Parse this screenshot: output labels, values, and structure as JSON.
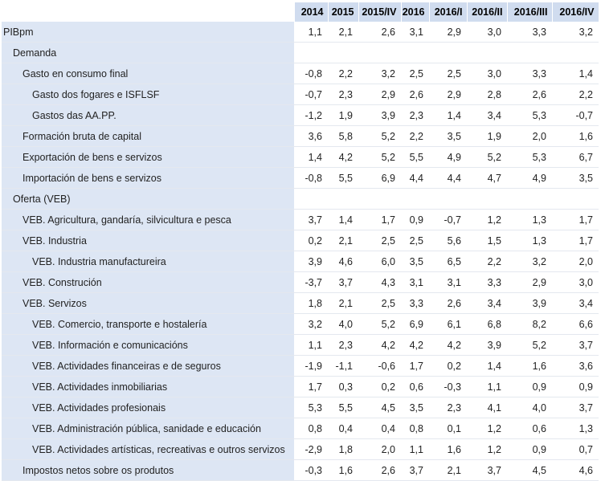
{
  "columns": [
    "2014",
    "2015",
    "2015/IV",
    "2016",
    "2016/I",
    "2016/II",
    "2016/III",
    "2016/IV"
  ],
  "rows": [
    {
      "label": "PIBpm",
      "indent": 0,
      "values": [
        "1,1",
        "2,1",
        "2,6",
        "3,1",
        "2,9",
        "3,0",
        "3,3",
        "3,2"
      ]
    },
    {
      "label": "Demanda",
      "indent": 1,
      "values": [
        "",
        "",
        "",
        "",
        "",
        "",
        "",
        ""
      ]
    },
    {
      "label": "Gasto en consumo final",
      "indent": 2,
      "values": [
        "-0,8",
        "2,2",
        "3,2",
        "2,5",
        "2,5",
        "3,0",
        "3,3",
        "1,4"
      ]
    },
    {
      "label": "Gasto dos fogares e ISFLSF",
      "indent": 3,
      "values": [
        "-0,7",
        "2,3",
        "2,9",
        "2,6",
        "2,9",
        "2,8",
        "2,6",
        "2,2"
      ]
    },
    {
      "label": "Gastos das AA.PP.",
      "indent": 3,
      "values": [
        "-1,2",
        "1,9",
        "3,9",
        "2,3",
        "1,4",
        "3,4",
        "5,3",
        "-0,7"
      ]
    },
    {
      "label": "Formación bruta de capital",
      "indent": 2,
      "values": [
        "3,6",
        "5,8",
        "5,2",
        "2,2",
        "3,5",
        "1,9",
        "2,0",
        "1,6"
      ]
    },
    {
      "label": "Exportación de bens e servizos",
      "indent": 2,
      "values": [
        "1,4",
        "4,2",
        "5,2",
        "5,5",
        "4,9",
        "5,2",
        "5,3",
        "6,7"
      ]
    },
    {
      "label": "Importación de bens e servizos",
      "indent": 2,
      "values": [
        "-0,8",
        "5,5",
        "6,9",
        "4,4",
        "4,4",
        "4,7",
        "4,9",
        "3,5"
      ]
    },
    {
      "label": "Oferta (VEB)",
      "indent": 1,
      "values": [
        "",
        "",
        "",
        "",
        "",
        "",
        "",
        ""
      ]
    },
    {
      "label": "VEB. Agricultura, gandaría, silvicultura e pesca",
      "indent": 2,
      "values": [
        "3,7",
        "1,4",
        "1,7",
        "0,9",
        "-0,7",
        "1,2",
        "1,3",
        "1,7"
      ]
    },
    {
      "label": "VEB. Industria",
      "indent": 2,
      "values": [
        "0,2",
        "2,1",
        "2,5",
        "2,5",
        "5,6",
        "1,5",
        "1,3",
        "1,7"
      ]
    },
    {
      "label": "VEB. Industria manufactureira",
      "indent": 3,
      "values": [
        "3,9",
        "4,6",
        "6,0",
        "3,5",
        "6,5",
        "2,2",
        "3,2",
        "2,0"
      ]
    },
    {
      "label": "VEB. Construción",
      "indent": 2,
      "values": [
        "-3,7",
        "3,7",
        "4,3",
        "3,1",
        "3,1",
        "3,3",
        "2,9",
        "3,0"
      ]
    },
    {
      "label": "VEB. Servizos",
      "indent": 2,
      "values": [
        "1,8",
        "2,1",
        "2,5",
        "3,3",
        "2,6",
        "3,4",
        "3,9",
        "3,4"
      ]
    },
    {
      "label": "VEB. Comercio, transporte e hostalería",
      "indent": 3,
      "values": [
        "3,2",
        "4,0",
        "5,2",
        "6,9",
        "6,1",
        "6,8",
        "8,2",
        "6,6"
      ]
    },
    {
      "label": "VEB. Información e comunicacións",
      "indent": 3,
      "values": [
        "1,1",
        "2,3",
        "4,2",
        "4,2",
        "4,2",
        "3,9",
        "5,2",
        "3,7"
      ]
    },
    {
      "label": "VEB. Actividades financeiras e de seguros",
      "indent": 3,
      "values": [
        "-1,9",
        "-1,1",
        "-0,6",
        "1,7",
        "0,2",
        "1,4",
        "1,6",
        "3,6"
      ]
    },
    {
      "label": "VEB. Actividades inmobiliarias",
      "indent": 3,
      "values": [
        "1,7",
        "0,3",
        "0,2",
        "0,6",
        "-0,3",
        "1,1",
        "0,9",
        "0,9"
      ]
    },
    {
      "label": "VEB. Actividades profesionais",
      "indent": 3,
      "values": [
        "5,3",
        "5,5",
        "4,5",
        "3,5",
        "2,3",
        "4,1",
        "4,0",
        "3,7"
      ]
    },
    {
      "label": "VEB. Administración pública, sanidade e educación",
      "indent": 3,
      "values": [
        "0,8",
        "0,4",
        "0,4",
        "0,8",
        "0,1",
        "1,2",
        "0,6",
        "1,3"
      ]
    },
    {
      "label": "VEB. Actividades artísticas, recreativas e outros servizos",
      "indent": 3,
      "values": [
        "-2,9",
        "1,8",
        "2,0",
        "1,1",
        "1,6",
        "1,2",
        "0,9",
        "0,7"
      ]
    },
    {
      "label": "Impostos netos sobre os produtos",
      "indent": 2,
      "values": [
        "-0,3",
        "1,6",
        "2,6",
        "3,7",
        "2,1",
        "3,7",
        "4,5",
        "4,6"
      ]
    }
  ]
}
